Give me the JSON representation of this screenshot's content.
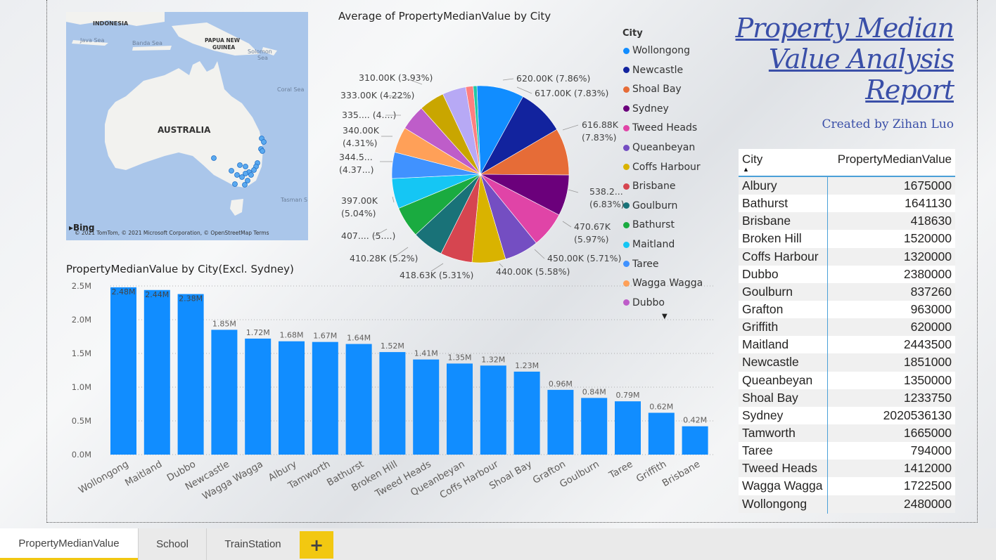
{
  "report": {
    "title_line1": "Property Median ",
    "title_line2": "Value Analysis",
    "title_line3": "Report",
    "created_by": "Created by Zihan Luo"
  },
  "map": {
    "labels": {
      "indonesia": "INDONESIA",
      "java_sea": "Java Sea",
      "banda_sea": "Banda Sea",
      "png": "PAPUA NEW",
      "png2": "GUINEA",
      "solomon": "Solomon",
      "solomon2": "Sea",
      "coral": "Coral Sea",
      "australia": "AUSTRALIA",
      "tasman": "Tasman S"
    },
    "bing": "Bing",
    "credit": "© 2021 TomTom, © 2021 Microsoft Corporation, © OpenStreetMap  Terms"
  },
  "pie_title": "Average of PropertyMedianValue by City",
  "legend_title": "City",
  "legend": [
    {
      "name": "Wollongong",
      "color": "#118dff"
    },
    {
      "name": "Newcastle",
      "color": "#12239e"
    },
    {
      "name": "Shoal Bay",
      "color": "#e66c37"
    },
    {
      "name": "Sydney",
      "color": "#6b007b"
    },
    {
      "name": "Tweed Heads",
      "color": "#e044a7"
    },
    {
      "name": "Queanbeyan",
      "color": "#744ec2"
    },
    {
      "name": "Coffs Harbour",
      "color": "#d9b300"
    },
    {
      "name": "Brisbane",
      "color": "#d64550"
    },
    {
      "name": "Goulburn",
      "color": "#197278"
    },
    {
      "name": "Bathurst",
      "color": "#1aab40"
    },
    {
      "name": "Maitland",
      "color": "#15c6f4"
    },
    {
      "name": "Taree",
      "color": "#4092ff"
    },
    {
      "name": "Wagga Wagga",
      "color": "#ffa058"
    },
    {
      "name": "Dubbo",
      "color": "#be5dc9"
    }
  ],
  "pie_labels": [
    "620.00K (7.86%)",
    "617.00K (7.83%)",
    "616.88K",
    "(7.83%)",
    "538.2...",
    "(6.83%)",
    "470.67K",
    "(5.97%)",
    "450.00K (5.71%)",
    "440.00K (5.58%)",
    "418.63K (5.31%)",
    "410.28K (5.2%)",
    "407.... (5....)",
    "397.00K",
    "(5.04%)",
    "344.5...",
    "(4.37...)",
    "340.00K",
    "(4.31%)",
    "335.... (4....)",
    "333.00K (4.22%)",
    "310.00K (3.93%)"
  ],
  "bar_title": "PropertyMedianValue by City(Excl. Sydney)",
  "table": {
    "headers": [
      "City",
      "PropertyMedianValue"
    ],
    "rows": [
      [
        "Albury",
        "1675000"
      ],
      [
        "Bathurst",
        "1641130"
      ],
      [
        "Brisbane",
        "418630"
      ],
      [
        "Broken Hill",
        "1520000"
      ],
      [
        "Coffs Harbour",
        "1320000"
      ],
      [
        "Dubbo",
        "2380000"
      ],
      [
        "Goulburn",
        "837260"
      ],
      [
        "Grafton",
        "963000"
      ],
      [
        "Griffith",
        "620000"
      ],
      [
        "Maitland",
        "2443500"
      ],
      [
        "Newcastle",
        "1851000"
      ],
      [
        "Queanbeyan",
        "1350000"
      ],
      [
        "Shoal Bay",
        "1233750"
      ],
      [
        "Sydney",
        "2020536130"
      ],
      [
        "Tamworth",
        "1665000"
      ],
      [
        "Taree",
        "794000"
      ],
      [
        "Tweed Heads",
        "1412000"
      ],
      [
        "Wagga Wagga",
        "1722500"
      ],
      [
        "Wollongong",
        "2480000"
      ]
    ]
  },
  "tabs": [
    "PropertyMedianValue",
    "School",
    "TrainStation"
  ],
  "tab_add": "+",
  "chart_data": [
    {
      "type": "pie",
      "title": "Average of PropertyMedianValue by City",
      "legend_title": "City",
      "legend_position": "right",
      "slices": [
        {
          "label": "Wollongong",
          "value": 620000,
          "pct": 7.86
        },
        {
          "label": "Newcastle",
          "value": 617000,
          "pct": 7.83
        },
        {
          "label": "Shoal Bay",
          "value": 616880,
          "pct": 7.83
        },
        {
          "label": "Sydney",
          "value": 538200,
          "pct": 6.83
        },
        {
          "label": "Tweed Heads",
          "value": 470670,
          "pct": 5.97
        },
        {
          "label": "Queanbeyan",
          "value": 450000,
          "pct": 5.71
        },
        {
          "label": "Coffs Harbour",
          "value": 440000,
          "pct": 5.58
        },
        {
          "label": "Brisbane",
          "value": 418630,
          "pct": 5.31
        },
        {
          "label": "Goulburn",
          "value": 410280,
          "pct": 5.2
        },
        {
          "label": "Bathurst",
          "value": 407000,
          "pct": 5.16
        },
        {
          "label": "Maitland",
          "value": 397000,
          "pct": 5.04
        },
        {
          "label": "Taree",
          "value": 344500,
          "pct": 4.37
        },
        {
          "label": "Wagga Wagga",
          "value": 340000,
          "pct": 4.31
        },
        {
          "label": "Dubbo",
          "value": 335000,
          "pct": 4.25
        },
        {
          "label": "",
          "value": 333000,
          "pct": 4.22
        },
        {
          "label": "",
          "value": 310000,
          "pct": 3.93
        },
        {
          "label": "",
          "value": 98000,
          "pct": 1.24
        },
        {
          "label": "",
          "value": 48000,
          "pct": 0.61
        }
      ],
      "extra_colors": [
        "#c9a600",
        "#b7a9f5",
        "#ff7f7f",
        "#1ec8a8"
      ]
    },
    {
      "type": "bar",
      "title": "PropertyMedianValue by City(Excl. Sydney)",
      "categories": [
        "Wollongong",
        "Maitland",
        "Dubbo",
        "Newcastle",
        "Wagga Wagga",
        "Albury",
        "Tamworth",
        "Bathurst",
        "Broken Hill",
        "Tweed Heads",
        "Queanbeyan",
        "Coffs Harbour",
        "Shoal Bay",
        "Grafton",
        "Goulburn",
        "Taree",
        "Griffith",
        "Brisbane"
      ],
      "values": [
        2.48,
        2.44,
        2.38,
        1.85,
        1.72,
        1.68,
        1.67,
        1.64,
        1.52,
        1.41,
        1.35,
        1.32,
        1.23,
        0.96,
        0.84,
        0.79,
        0.62,
        0.42
      ],
      "data_labels": [
        "2.48M",
        "2.44M",
        "2.38M",
        "1.85M",
        "1.72M",
        "1.68M",
        "1.67M",
        "1.64M",
        "1.52M",
        "1.41M",
        "1.35M",
        "1.32M",
        "1.23M",
        "0.96M",
        "0.84M",
        "0.79M",
        "0.62M",
        "0.42M"
      ],
      "unit": "M",
      "yticks": [
        "0.0M",
        "0.5M",
        "1.0M",
        "1.5M",
        "2.0M",
        "2.5M"
      ],
      "ylim": [
        0,
        2.5
      ],
      "color": "#118dff"
    }
  ]
}
